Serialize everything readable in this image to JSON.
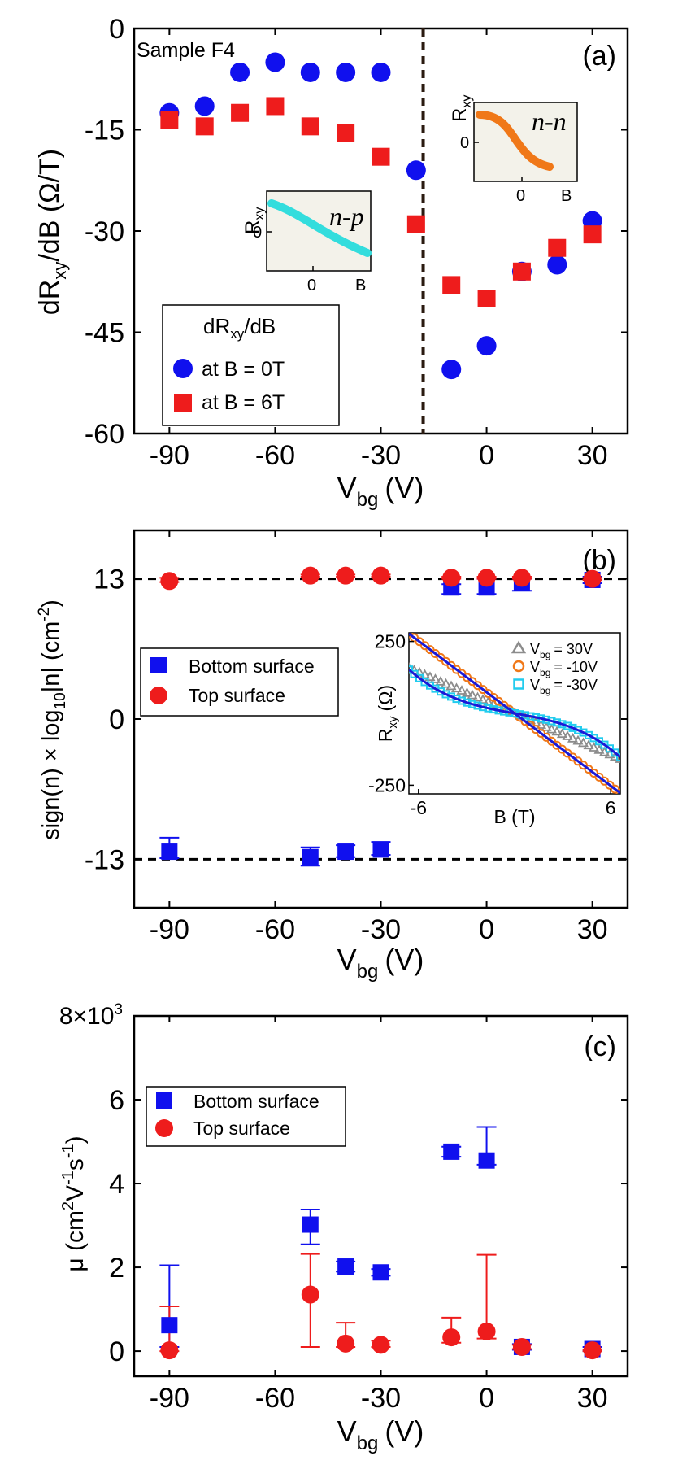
{
  "chart_data": [
    {
      "type": "scatter",
      "panel_label": "(a)",
      "title": "",
      "annotation": "Sample F4",
      "xlabel": "V",
      "xlabel_sub": "bg",
      "xlabel_unit": "(V)",
      "ylabel": "dR",
      "ylabel_sub": "xy",
      "ylabel_rest": "/dB (Ω/T)",
      "xlim": [
        -100,
        40
      ],
      "ylim": [
        -60,
        0
      ],
      "xticks": [
        -90,
        -60,
        -30,
        0,
        30
      ],
      "yticks": [
        0,
        -15,
        -30,
        -45,
        -60
      ],
      "vline_x": -18,
      "legend": {
        "title": "dR",
        "title_sub": "xy",
        "title_rest": "/dB",
        "position": "bottom-left",
        "entries": [
          "at B = 0T",
          "at B = 6T"
        ]
      },
      "series": [
        {
          "name": "at B = 0T",
          "marker": "circle",
          "color": "#1010ee",
          "x": [
            -90,
            -80,
            -70,
            -60,
            -50,
            -40,
            -30,
            -20,
            -10,
            0,
            10,
            20,
            30
          ],
          "y": [
            -12.5,
            -11.5,
            -6.5,
            -5,
            -6.5,
            -6.5,
            -6.5,
            -21,
            -50.5,
            -47,
            -36,
            -35,
            -28.5
          ]
        },
        {
          "name": "at B = 6T",
          "marker": "square",
          "color": "#ee1c1c",
          "x": [
            -90,
            -80,
            -70,
            -60,
            -50,
            -40,
            -30,
            -20,
            -10,
            0,
            10,
            20,
            30
          ],
          "y": [
            -13.5,
            -14.5,
            -12.5,
            -11.5,
            -14.5,
            -15.5,
            -19,
            -29,
            -38,
            -40,
            -36,
            -32.5,
            -30.5
          ]
        }
      ],
      "insets": [
        {
          "label": "n-p",
          "ylabel": "R",
          "ylabel_sub": "xy",
          "ytick": "0",
          "xtick": "0",
          "xlabel": "B",
          "color": "#33dddd"
        },
        {
          "label": "n-n",
          "ylabel": "R",
          "ylabel_sub": "xy",
          "ytick": "0",
          "xtick": "0",
          "xlabel": "B",
          "color": "#f07818"
        }
      ]
    },
    {
      "type": "scatter",
      "panel_label": "(b)",
      "title": "",
      "xlabel": "V",
      "xlabel_sub": "bg",
      "xlabel_unit": "(V)",
      "ylabel": "sign(n) × log",
      "ylabel_sub": "10",
      "ylabel_rest": "|n| (cm",
      "ylabel_sup": "-2",
      "ylabel_end": ")",
      "xlim": [
        -100,
        40
      ],
      "ylim": [
        -17.5,
        17.5
      ],
      "xticks": [
        -90,
        -60,
        -30,
        0,
        30
      ],
      "yticks": [
        13,
        0,
        -13
      ],
      "hlines": [
        13,
        -13
      ],
      "legend": {
        "position": "middle-left",
        "entries": [
          "Bottom surface",
          "Top surface"
        ]
      },
      "series": [
        {
          "name": "Bottom surface",
          "marker": "square",
          "color": "#1010ee",
          "x": [
            -90,
            -50,
            -40,
            -30,
            -10,
            0,
            10,
            30
          ],
          "y": [
            -12.3,
            -12.8,
            -12.3,
            -12.1,
            12.2,
            12.2,
            12.6,
            12.9
          ],
          "err_low": [
            0.6,
            0.8,
            0.5,
            0.5,
            0.6,
            0.6,
            0.7,
            0.3
          ],
          "err_high": [
            1.3,
            0.9,
            0.6,
            0.7,
            0.3,
            0.8,
            0.4,
            0.3
          ]
        },
        {
          "name": "Top surface",
          "marker": "circle",
          "color": "#ee1c1c",
          "x": [
            -90,
            -50,
            -40,
            -30,
            -10,
            0,
            10,
            30
          ],
          "y": [
            12.8,
            13.3,
            13.3,
            13.3,
            13.1,
            13.1,
            13.1,
            13.0
          ],
          "err_low": [
            0.1,
            0.1,
            0.1,
            0.1,
            0.1,
            0.1,
            0.1,
            0.1
          ],
          "err_high": [
            0.3,
            0.1,
            0.1,
            0.1,
            0.1,
            0.1,
            0.1,
            0.1
          ]
        }
      ],
      "inset": {
        "xlabel": "B (T)",
        "ylabel": "R",
        "ylabel_sub": "xy",
        "ylabel_unit": "(Ω)",
        "xlim": [
          -6.6,
          6.6
        ],
        "ylim": [
          -280,
          280
        ],
        "xticks": [
          -6,
          6
        ],
        "yticks": [
          250,
          -250
        ],
        "legend": [
          {
            "name": "V",
            "sub": "bg",
            "value": "= 30V",
            "marker": "triangle",
            "color": "#8c8c8c"
          },
          {
            "name": "V",
            "sub": "bg",
            "value": "= -10V",
            "marker": "circle",
            "color": "#f07818"
          },
          {
            "name": "V",
            "sub": "bg",
            "value": "= -30V",
            "marker": "square",
            "color": "#22ccee"
          }
        ],
        "series": [
          {
            "name": "30V",
            "slope": -24
          },
          {
            "name": "-10V",
            "slope": -42
          },
          {
            "name": "-30V",
            "slope": -10,
            "cubic": -0.3
          }
        ],
        "fit_color": "#1a1ad8"
      }
    },
    {
      "type": "scatter",
      "panel_label": "(c)",
      "title": "",
      "xlabel": "V",
      "xlabel_sub": "bg",
      "xlabel_unit": "(V)",
      "ylabel": "μ (cm",
      "ylabel_sup": "2",
      "ylabel_rest": "V",
      "ylabel_sup2": "-1",
      "ylabel_rest2": "s",
      "ylabel_sup3": "-1",
      "ylabel_end": ")",
      "xlim": [
        -100,
        40
      ],
      "ylim": [
        -0.6,
        8
      ],
      "xticks": [
        -90,
        -60,
        -30,
        0,
        30
      ],
      "yticks": [
        0,
        2,
        4,
        6
      ],
      "ytick_top_label": "8×10",
      "ytick_top_exp": "3",
      "legend": {
        "position": "top-left",
        "entries": [
          "Bottom surface",
          "Top surface"
        ]
      },
      "series": [
        {
          "name": "Bottom surface",
          "marker": "square",
          "color": "#1010ee",
          "x": [
            -90,
            -50,
            -40,
            -30,
            -10,
            0,
            10,
            30
          ],
          "y": [
            0.62,
            3.02,
            2.02,
            1.88,
            4.76,
            4.55,
            0.1,
            0.05
          ],
          "err_low": [
            0.52,
            0.47,
            0.12,
            0.08,
            0.12,
            0.1,
            0.07,
            0.05
          ],
          "err_high": [
            1.43,
            0.36,
            0.12,
            0.08,
            0.12,
            0.8,
            0.07,
            0.05
          ]
        },
        {
          "name": "Top surface",
          "marker": "circle",
          "color": "#ee1c1c",
          "x": [
            -90,
            -50,
            -40,
            -30,
            -10,
            0,
            10,
            30
          ],
          "y": [
            0.02,
            1.35,
            0.18,
            0.15,
            0.33,
            0.47,
            0.1,
            0.02
          ],
          "err_low": [
            0.02,
            1.25,
            0.08,
            0.05,
            0.13,
            0.17,
            0.05,
            0.02
          ],
          "err_high": [
            1.05,
            0.97,
            0.5,
            0.1,
            0.47,
            1.83,
            0.05,
            0.02
          ]
        }
      ]
    }
  ]
}
